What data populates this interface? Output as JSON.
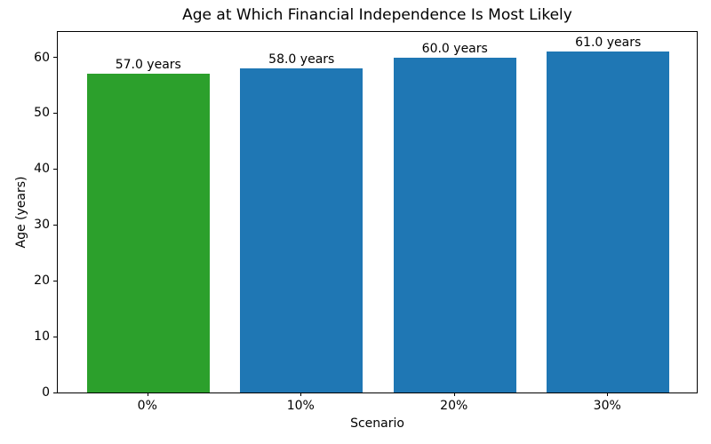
{
  "chart_data": {
    "type": "bar",
    "title": "Age at Which Financial Independence Is Most Likely",
    "xlabel": "Scenario",
    "ylabel": "Age (years)",
    "categories": [
      "0%",
      "10%",
      "20%",
      "30%"
    ],
    "values": [
      57.0,
      58.0,
      60.0,
      61.0
    ],
    "bar_labels": [
      "57.0 years",
      "58.0 years",
      "60.0 years",
      "61.0 years"
    ],
    "bar_colors": [
      "#2ca02c",
      "#1f77b4",
      "#1f77b4",
      "#1f77b4"
    ],
    "yticks": [
      0,
      10,
      20,
      30,
      40,
      50,
      60
    ],
    "ylim": [
      0,
      64.7
    ],
    "grid": false,
    "legend": "none",
    "bar_width_fraction": 0.8
  }
}
